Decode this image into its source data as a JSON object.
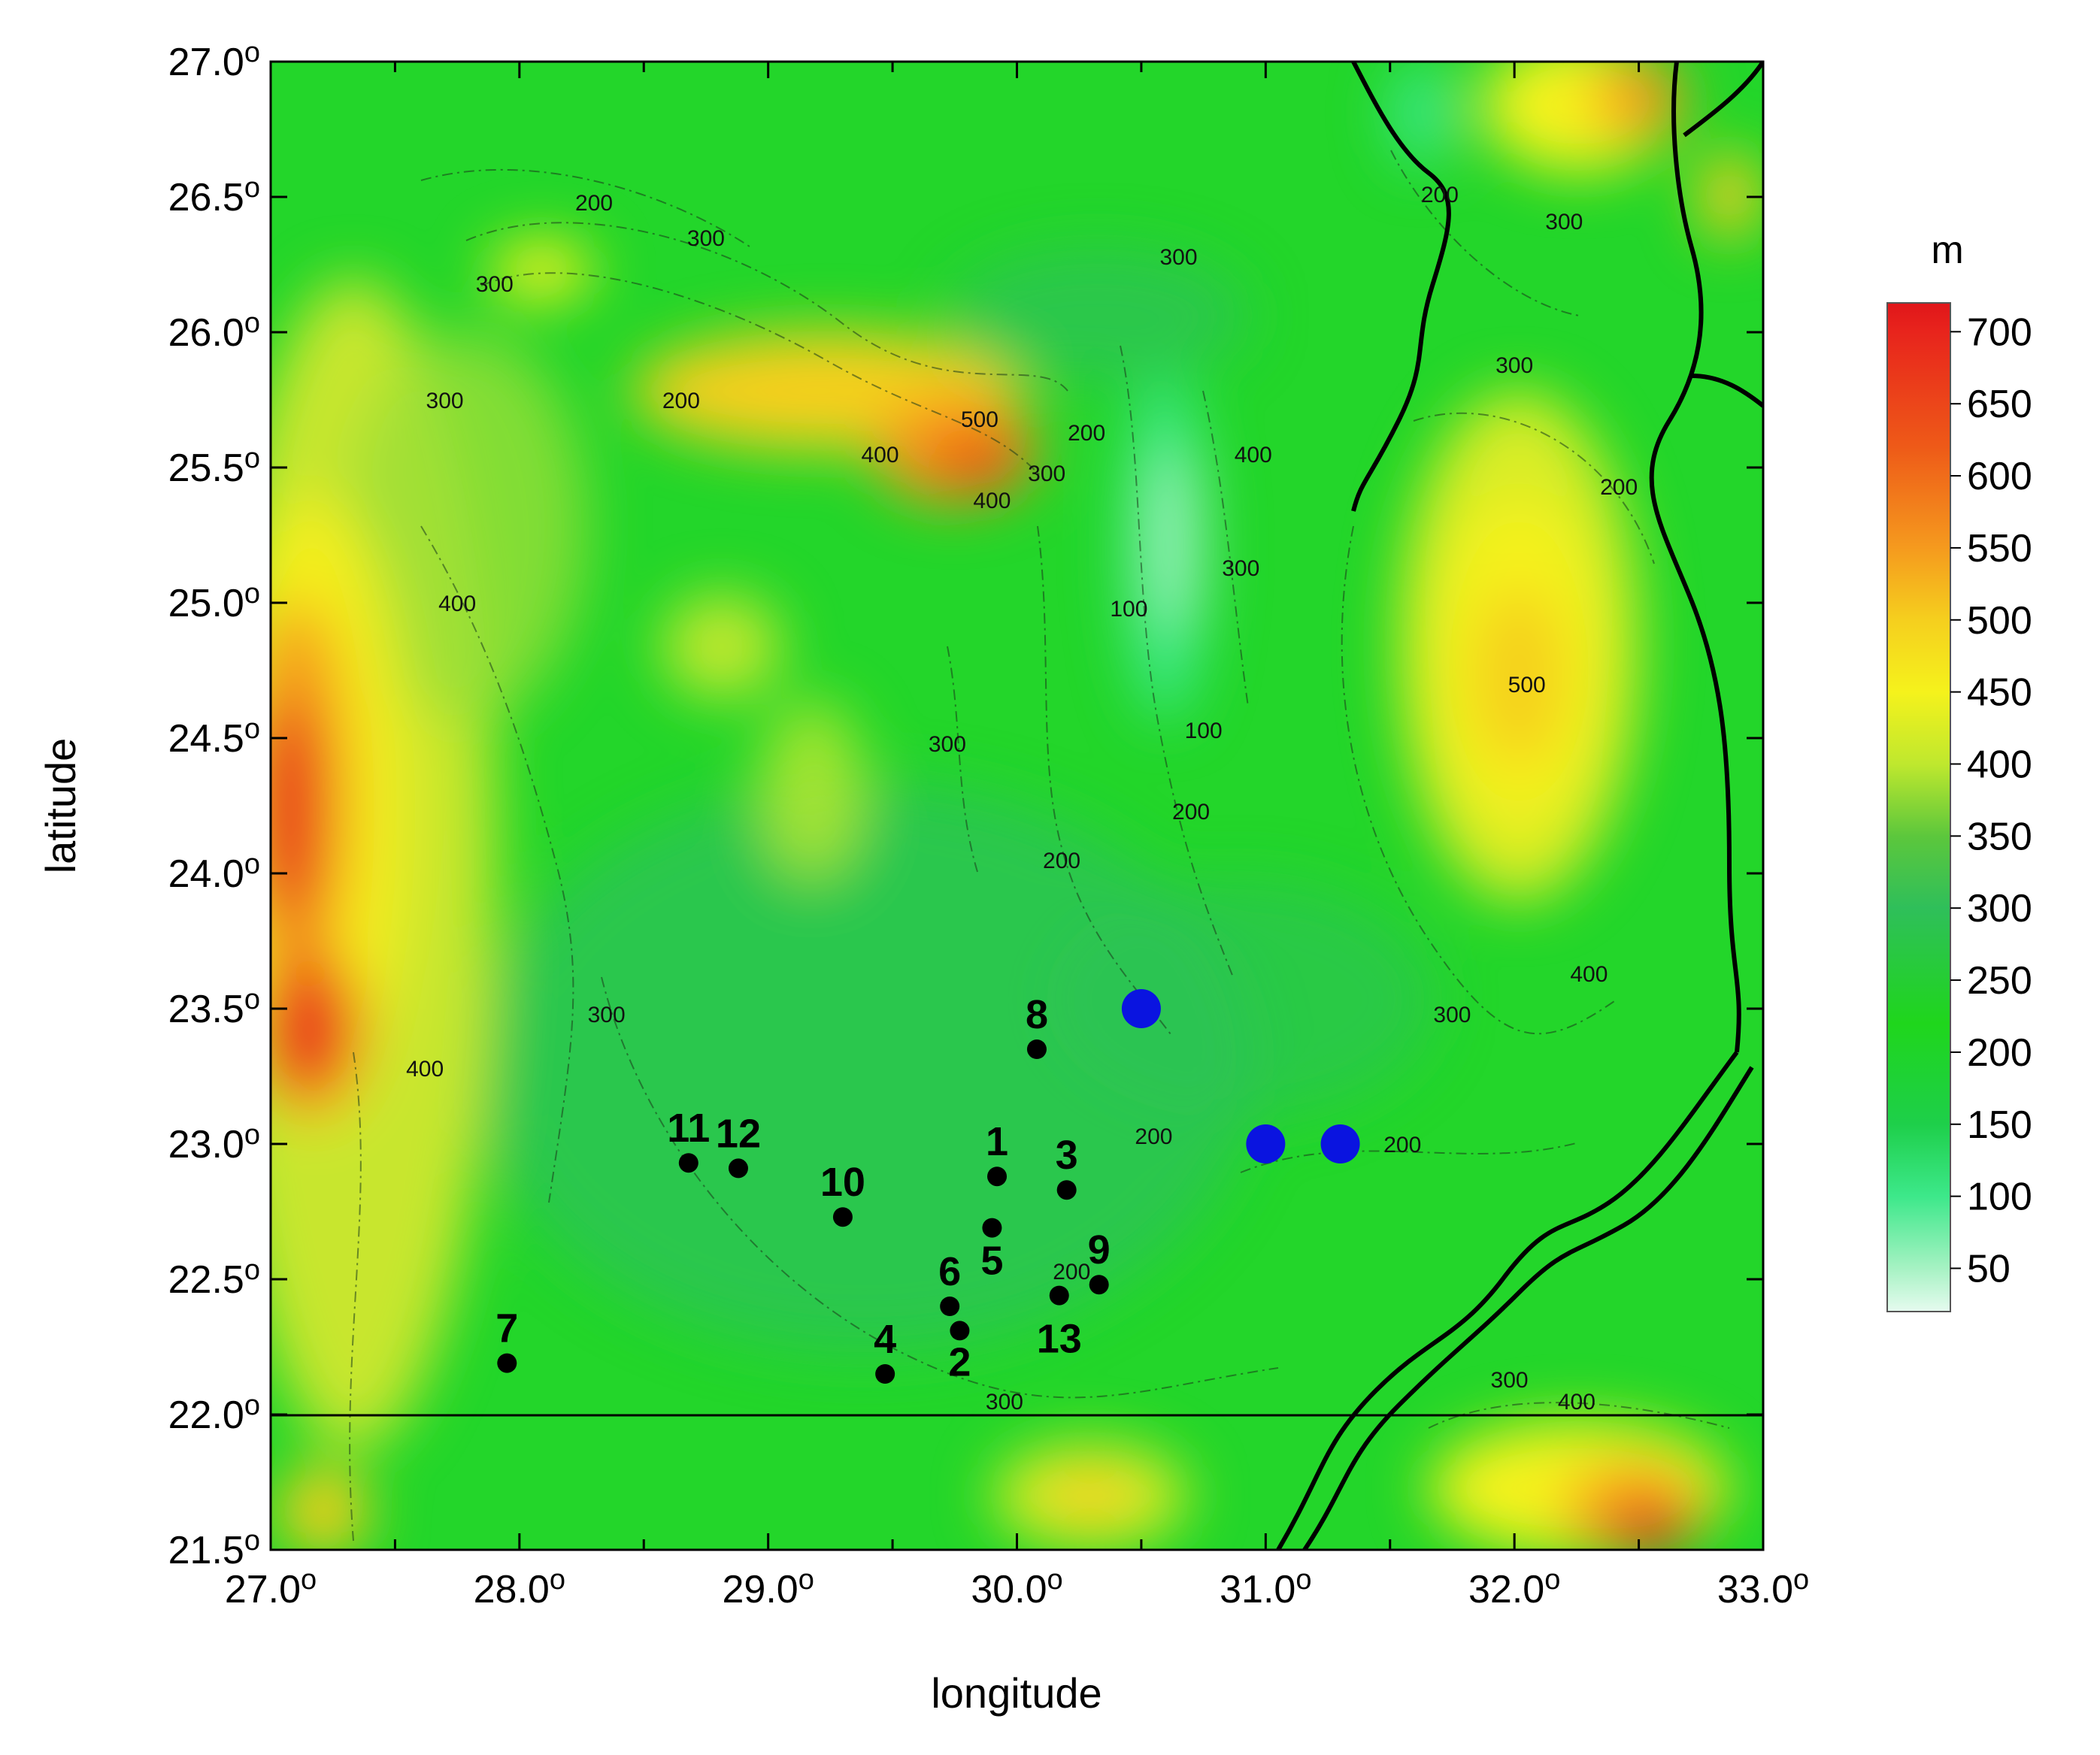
{
  "map": {
    "x_axis": {
      "title": "longitude",
      "ticks": [
        {
          "value": 27,
          "label": "27.0",
          "sup": "o"
        },
        {
          "value": 28,
          "label": "28.0",
          "sup": "o"
        },
        {
          "value": 29,
          "label": "29.0",
          "sup": "o"
        },
        {
          "value": 30,
          "label": "30.0",
          "sup": "o"
        },
        {
          "value": 31,
          "label": "31.0",
          "sup": "o"
        },
        {
          "value": 32,
          "label": "32.0",
          "sup": "o"
        },
        {
          "value": 33,
          "label": "33.0",
          "sup": "o"
        }
      ],
      "range": [
        27,
        33
      ]
    },
    "y_axis": {
      "title": "latitude",
      "ticks": [
        {
          "value": 27.0,
          "label": "27.0",
          "sup": "o"
        },
        {
          "value": 26.5,
          "label": "26.5",
          "sup": "o"
        },
        {
          "value": 26.0,
          "label": "26.0",
          "sup": "o"
        },
        {
          "value": 25.5,
          "label": "25.5",
          "sup": "o"
        },
        {
          "value": 25.0,
          "label": "25.0",
          "sup": "o"
        },
        {
          "value": 24.5,
          "label": "24.5",
          "sup": "o"
        },
        {
          "value": 24.0,
          "label": "24.0",
          "sup": "o"
        },
        {
          "value": 23.5,
          "label": "23.5",
          "sup": "o"
        },
        {
          "value": 23.0,
          "label": "23.0",
          "sup": "o"
        },
        {
          "value": 22.5,
          "label": "22.5",
          "sup": "o"
        },
        {
          "value": 22.0,
          "label": "22.0",
          "sup": "o"
        },
        {
          "value": 21.5,
          "label": "21.5",
          "sup": "o"
        }
      ],
      "range": [
        21.5,
        27.0
      ]
    },
    "colorbar": {
      "unit": "m",
      "range": [
        20,
        720
      ],
      "ticks": [
        "700",
        "650",
        "600",
        "550",
        "500",
        "450",
        "400",
        "350",
        "300",
        "250",
        "200",
        "150",
        "100",
        "50"
      ],
      "tick_values": [
        700,
        650,
        600,
        550,
        500,
        450,
        400,
        350,
        300,
        250,
        200,
        150,
        100,
        50
      ],
      "color_stops": [
        {
          "value": 20,
          "color": "#e6fbef"
        },
        {
          "value": 50,
          "color": "#a6f2c3"
        },
        {
          "value": 100,
          "color": "#3de88a"
        },
        {
          "value": 150,
          "color": "#1ecf4a"
        },
        {
          "value": 220,
          "color": "#1fd61c"
        },
        {
          "value": 300,
          "color": "#2fbf5a"
        },
        {
          "value": 350,
          "color": "#5cc73c"
        },
        {
          "value": 400,
          "color": "#bfe82e"
        },
        {
          "value": 450,
          "color": "#f5f21c"
        },
        {
          "value": 500,
          "color": "#f5cf1e"
        },
        {
          "value": 550,
          "color": "#f59a1e"
        },
        {
          "value": 620,
          "color": "#ee5a18"
        },
        {
          "value": 700,
          "color": "#e8241c"
        },
        {
          "value": 720,
          "color": "#e0161a"
        }
      ]
    },
    "contour_labels": [
      {
        "text": "200",
        "lon": 28.3,
        "lat": 26.45
      },
      {
        "text": "300",
        "lon": 28.75,
        "lat": 26.32
      },
      {
        "text": "300",
        "lon": 27.9,
        "lat": 26.15
      },
      {
        "text": "300",
        "lon": 27.7,
        "lat": 25.72
      },
      {
        "text": "200",
        "lon": 28.65,
        "lat": 25.72
      },
      {
        "text": "400",
        "lon": 29.45,
        "lat": 25.52
      },
      {
        "text": "500",
        "lon": 29.85,
        "lat": 25.65
      },
      {
        "text": "400",
        "lon": 29.9,
        "lat": 25.35
      },
      {
        "text": "300",
        "lon": 30.12,
        "lat": 25.45
      },
      {
        "text": "200",
        "lon": 30.28,
        "lat": 25.6
      },
      {
        "text": "300",
        "lon": 30.65,
        "lat": 26.25
      },
      {
        "text": "400",
        "lon": 30.95,
        "lat": 25.52
      },
      {
        "text": "300",
        "lon": 30.9,
        "lat": 25.1
      },
      {
        "text": "100",
        "lon": 30.45,
        "lat": 24.95
      },
      {
        "text": "100",
        "lon": 30.75,
        "lat": 24.5
      },
      {
        "text": "200",
        "lon": 30.7,
        "lat": 24.2
      },
      {
        "text": "200",
        "lon": 30.18,
        "lat": 24.02
      },
      {
        "text": "300",
        "lon": 29.72,
        "lat": 24.45
      },
      {
        "text": "400",
        "lon": 27.75,
        "lat": 24.97
      },
      {
        "text": "300",
        "lon": 28.35,
        "lat": 23.45
      },
      {
        "text": "400",
        "lon": 27.62,
        "lat": 23.25
      },
      {
        "text": "200",
        "lon": 31.7,
        "lat": 26.48
      },
      {
        "text": "300",
        "lon": 32.2,
        "lat": 26.38
      },
      {
        "text": "300",
        "lon": 32.0,
        "lat": 25.85
      },
      {
        "text": "200",
        "lon": 32.42,
        "lat": 25.4
      },
      {
        "text": "500",
        "lon": 32.05,
        "lat": 24.67
      },
      {
        "text": "400",
        "lon": 32.3,
        "lat": 23.6
      },
      {
        "text": "300",
        "lon": 31.75,
        "lat": 23.45
      },
      {
        "text": "200",
        "lon": 30.55,
        "lat": 23.0
      },
      {
        "text": "200",
        "lon": 31.55,
        "lat": 22.97
      },
      {
        "text": "200",
        "lon": 30.22,
        "lat": 22.5
      },
      {
        "text": "300",
        "lon": 29.95,
        "lat": 22.02
      },
      {
        "text": "300",
        "lon": 31.98,
        "lat": 22.1
      },
      {
        "text": "400",
        "lon": 32.25,
        "lat": 22.02
      }
    ],
    "sites": [
      {
        "label": "1",
        "lon": 29.92,
        "lat": 22.88
      },
      {
        "label": "2",
        "lon": 29.77,
        "lat": 22.31
      },
      {
        "label": "3",
        "lon": 30.2,
        "lat": 22.83
      },
      {
        "label": "4",
        "lon": 29.47,
        "lat": 22.15
      },
      {
        "label": "5",
        "lon": 29.9,
        "lat": 22.69
      },
      {
        "label": "6",
        "lon": 29.73,
        "lat": 22.4
      },
      {
        "label": "7",
        "lon": 27.95,
        "lat": 22.19
      },
      {
        "label": "8",
        "lon": 30.08,
        "lat": 23.35
      },
      {
        "label": "9",
        "lon": 30.33,
        "lat": 22.48
      },
      {
        "label": "10",
        "lon": 29.3,
        "lat": 22.73
      },
      {
        "label": "11",
        "lon": 28.68,
        "lat": 22.93
      },
      {
        "label": "12",
        "lon": 28.88,
        "lat": 22.91
      },
      {
        "label": "13",
        "lon": 30.17,
        "lat": 22.44
      }
    ],
    "blue_points": [
      {
        "lon": 30.5,
        "lat": 23.5
      },
      {
        "lon": 31.0,
        "lat": 23.0
      },
      {
        "lon": 31.3,
        "lat": 23.0
      }
    ],
    "colors": {
      "site_marker": "#000000",
      "blue_point": "#0a14e0",
      "boundary": "#000000"
    }
  }
}
